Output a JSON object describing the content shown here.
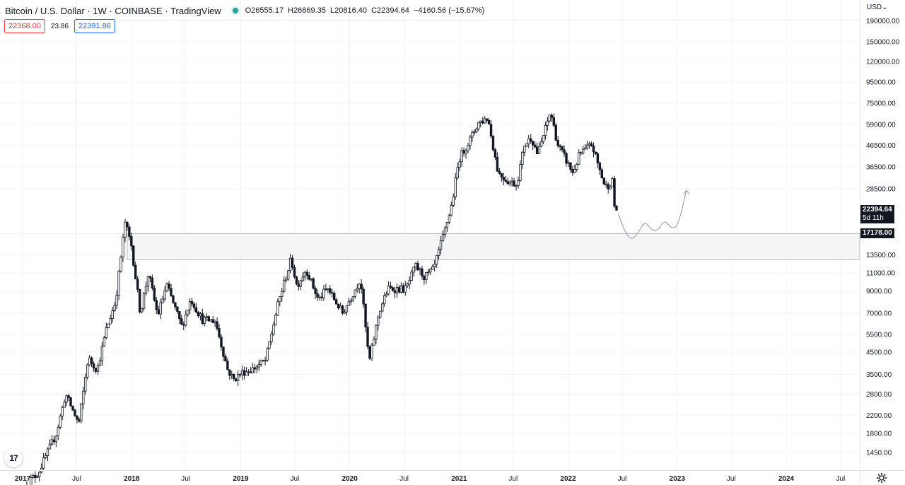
{
  "legend": {
    "symbol": "Bitcoin / U.S. Dollar",
    "interval": "1W",
    "exchange": "COINBASE",
    "source": "TradingView",
    "open": "O26555.17",
    "high": "H26869.35",
    "low": "L20816.40",
    "close": "C22394.64",
    "change": "−4160.56 (−15.67%)"
  },
  "quote": {
    "sell": "22368.00",
    "spread": "23.86",
    "buy": "22391.86"
  },
  "price_axis": {
    "currency": "USD",
    "last_price": "22394.64",
    "countdown": "5d 11h",
    "zone_price": "17178.00"
  },
  "logo_text": "17",
  "colors": {
    "candle": "#131722",
    "zone_fill": "#f5f5f7",
    "zone_border": "#b2b5be",
    "grid": "#f0f3fa",
    "projection": "#9598a1",
    "up_dot": "#26a69a"
  },
  "chart_data": {
    "type": "candlestick",
    "symbol": "BTCUSD",
    "interval": "1W",
    "y_scale": "log",
    "grid": true,
    "y_ticks": [
      190000,
      150000,
      120000,
      95000,
      75000,
      59000,
      46500,
      36500,
      28500,
      17178,
      13500,
      11000,
      9000,
      7000,
      5500,
      4500,
      3500,
      2800,
      2200,
      1800,
      1450
    ],
    "y_tick_labels": [
      "190000.00",
      "150000.00",
      "120000.00",
      "95000.00",
      "75000.00",
      "59000.00",
      "46500.00",
      "36500.00",
      "28500.00",
      "",
      "13500.00",
      "11000.00",
      "9000.00",
      "7000.00",
      "5500.00",
      "4500.00",
      "3500.00",
      "2800.00",
      "2200.00",
      "1800.00",
      "1450.00"
    ],
    "x_ticks": [
      {
        "date": "2017-01-01",
        "label": "2017",
        "bold": true
      },
      {
        "date": "2017-07-01",
        "label": "Jul",
        "bold": false
      },
      {
        "date": "2018-01-01",
        "label": "2018",
        "bold": true
      },
      {
        "date": "2018-07-01",
        "label": "Jul",
        "bold": false
      },
      {
        "date": "2019-01-01",
        "label": "2019",
        "bold": true
      },
      {
        "date": "2019-07-01",
        "label": "Jul",
        "bold": false
      },
      {
        "date": "2020-01-01",
        "label": "2020",
        "bold": true
      },
      {
        "date": "2020-07-01",
        "label": "Jul",
        "bold": false
      },
      {
        "date": "2021-01-01",
        "label": "2021",
        "bold": true
      },
      {
        "date": "2021-07-01",
        "label": "Jul",
        "bold": false
      },
      {
        "date": "2022-01-01",
        "label": "2022",
        "bold": true
      },
      {
        "date": "2022-07-01",
        "label": "Jul",
        "bold": false
      },
      {
        "date": "2023-01-01",
        "label": "2023",
        "bold": true
      },
      {
        "date": "2023-07-01",
        "label": "Jul",
        "bold": false
      },
      {
        "date": "2024-01-01",
        "label": "2024",
        "bold": true
      },
      {
        "date": "2024-07-01",
        "label": "Jul",
        "bold": false
      }
    ],
    "price_path": [
      [
        "2017-01-15",
        1000
      ],
      [
        "2017-03-01",
        1150
      ],
      [
        "2017-05-01",
        1800
      ],
      [
        "2017-06-01",
        2800
      ],
      [
        "2017-07-15",
        2000
      ],
      [
        "2017-08-15",
        4200
      ],
      [
        "2017-09-15",
        3700
      ],
      [
        "2017-10-15",
        5800
      ],
      [
        "2017-11-15",
        8000
      ],
      [
        "2017-12-17",
        19500
      ],
      [
        "2018-01-07",
        15000
      ],
      [
        "2018-02-06",
        7000
      ],
      [
        "2018-03-05",
        11000
      ],
      [
        "2018-04-05",
        6800
      ],
      [
        "2018-05-05",
        9600
      ],
      [
        "2018-06-25",
        6000
      ],
      [
        "2018-07-25",
        8200
      ],
      [
        "2018-09-01",
        6500
      ],
      [
        "2018-10-15",
        6400
      ],
      [
        "2018-11-25",
        3700
      ],
      [
        "2018-12-15",
        3300
      ],
      [
        "2019-01-15",
        3600
      ],
      [
        "2019-02-15",
        3700
      ],
      [
        "2019-04-01",
        4100
      ],
      [
        "2019-05-15",
        8000
      ],
      [
        "2019-06-26",
        12900
      ],
      [
        "2019-07-15",
        9500
      ],
      [
        "2019-08-15",
        11500
      ],
      [
        "2019-09-25",
        8100
      ],
      [
        "2019-10-25",
        9300
      ],
      [
        "2019-12-15",
        7000
      ],
      [
        "2020-02-13",
        10300
      ],
      [
        "2020-03-13",
        4000
      ],
      [
        "2020-04-15",
        7100
      ],
      [
        "2020-05-15",
        9200
      ],
      [
        "2020-07-15",
        9200
      ],
      [
        "2020-08-15",
        11900
      ],
      [
        "2020-09-15",
        10500
      ],
      [
        "2020-10-15",
        11500
      ],
      [
        "2020-11-15",
        16500
      ],
      [
        "2020-12-15",
        24000
      ],
      [
        "2021-01-08",
        40000
      ],
      [
        "2021-02-15",
        50000
      ],
      [
        "2021-03-13",
        60000
      ],
      [
        "2021-04-14",
        63500
      ],
      [
        "2021-05-19",
        34000
      ],
      [
        "2021-06-22",
        31000
      ],
      [
        "2021-07-20",
        30000
      ],
      [
        "2021-08-15",
        47000
      ],
      [
        "2021-09-07",
        51000
      ],
      [
        "2021-09-28",
        42000
      ],
      [
        "2021-11-10",
        68000
      ],
      [
        "2021-12-04",
        47000
      ],
      [
        "2022-01-24",
        34000
      ],
      [
        "2022-02-15",
        42000
      ],
      [
        "2022-03-28",
        47000
      ],
      [
        "2022-05-12",
        29000
      ],
      [
        "2022-06-06",
        31000
      ],
      [
        "2022-06-13",
        22394.64
      ]
    ],
    "resistance_zone": {
      "top": 17178,
      "bottom": 12800,
      "start": "2017-12-17"
    },
    "projection": [
      [
        "2022-06-18",
        21500
      ],
      [
        "2022-07-10",
        17500
      ],
      [
        "2022-08-01",
        16000
      ],
      [
        "2022-08-20",
        17000
      ],
      [
        "2022-09-15",
        19800
      ],
      [
        "2022-10-05",
        18000
      ],
      [
        "2022-10-25",
        17500
      ],
      [
        "2022-11-20",
        20200
      ],
      [
        "2022-12-15",
        18000
      ],
      [
        "2023-01-05",
        19000
      ],
      [
        "2023-02-01",
        28000
      ]
    ]
  }
}
